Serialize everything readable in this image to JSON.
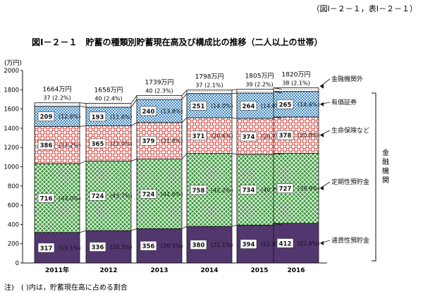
{
  "header": {
    "ref_note": "（図Ⅰ－２－１，表Ⅰ－２－１）",
    "title": "図Ⅰ－２－１　貯蓄の種類別貯蓄現在高及び構成比の推移（二人以上の世帯）"
  },
  "footnote": "注)　( )内は，貯蓄現在高に占める割合",
  "side_bracket_label": "金融機関",
  "colors": {
    "currency": "#52366e",
    "time": "#3a9a3a",
    "insurance": "#e2625c",
    "securities": "#4a8fc4",
    "other": "#bfbfbf"
  },
  "chart_data": {
    "type": "bar",
    "stacked": true,
    "title": "貯蓄の種類別貯蓄現在高及び構成比の推移（二人以上の世帯）",
    "ylabel": "(万円)",
    "xlabel": "",
    "ylim": [
      0,
      2000
    ],
    "yticks": [
      0,
      200,
      400,
      600,
      800,
      1000,
      1200,
      1400,
      1600,
      1800,
      2000
    ],
    "categories": [
      "2011年",
      "2012",
      "2013",
      "2014",
      "2015",
      "2016"
    ],
    "totals": [
      1664,
      1658,
      1739,
      1798,
      1805,
      1820
    ],
    "total_labels": [
      "1664万円",
      "1658万円",
      "1739万円",
      "1798万円",
      "1805万円",
      "1820万円"
    ],
    "series": [
      {
        "name": "通貨性預貯金",
        "key": "currency",
        "values": [
          317,
          336,
          356,
          380,
          394,
          412
        ],
        "pct": [
          "(19.1%)",
          "(20.3%)",
          "(20.5%)",
          "(21.1%)",
          "(21.8%)",
          "(22.6%)"
        ]
      },
      {
        "name": "定期性預貯金",
        "key": "time",
        "values": [
          716,
          724,
          724,
          758,
          734,
          727
        ],
        "pct": [
          "(43.0%)",
          "(43.7%)",
          "(41.6%)",
          "(42.2%)",
          "(40.7%)",
          "(39.9%)"
        ]
      },
      {
        "name": "生命保険など",
        "key": "insurance",
        "values": [
          386,
          365,
          379,
          371,
          374,
          378
        ],
        "pct": [
          "(23.2%)",
          "(22.0%)",
          "(21.8%)",
          "(20.6%)",
          "(20.7%)",
          "(20.8%)"
        ]
      },
      {
        "name": "有価証券",
        "key": "securities",
        "values": [
          209,
          193,
          240,
          251,
          264,
          265
        ],
        "pct": [
          "(12.6%)",
          "(11.6%)",
          "(13.8%)",
          "(14.0%)",
          "(14.6%)",
          "(14.6%)"
        ]
      },
      {
        "name": "金融機関外",
        "key": "other",
        "values": [
          37,
          40,
          40,
          37,
          39,
          38
        ],
        "pct": [
          "(2.2%)",
          "(2.4%)",
          "(2.3%)",
          "(2.1%)",
          "(2.2%)",
          "(2.1%)"
        ]
      }
    ],
    "grid": false
  }
}
